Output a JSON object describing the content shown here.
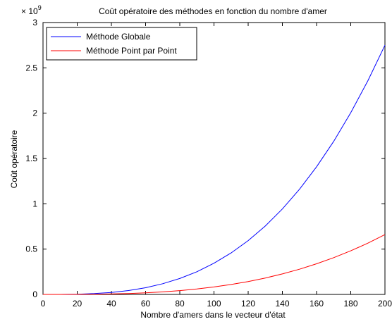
{
  "chart_data": {
    "type": "line",
    "title": "Coût opératoire des méthodes en fonction du nombre d'amer",
    "xlabel": "Nombre d'amers dans le vecteur d'état",
    "ylabel": "Coût opératoire",
    "y_multiplier_base": "× 10",
    "y_multiplier_exp": "9",
    "xlim": [
      0,
      200
    ],
    "ylim": [
      0,
      3
    ],
    "x_ticks": [
      0,
      20,
      40,
      60,
      80,
      100,
      120,
      140,
      160,
      180,
      200
    ],
    "y_ticks": [
      0,
      0.5,
      1,
      1.5,
      2,
      2.5,
      3
    ],
    "y_tick_labels": [
      "0",
      "0.5",
      "1",
      "1.5",
      "2",
      "2.5",
      "3"
    ],
    "grid": false,
    "legend_position": "top-left",
    "x": [
      0,
      10,
      20,
      30,
      40,
      50,
      60,
      70,
      80,
      90,
      100,
      110,
      120,
      130,
      140,
      150,
      160,
      170,
      180,
      190,
      200
    ],
    "series": [
      {
        "name": "Méthode Globale",
        "color": "#0000ff",
        "values": [
          0,
          0.0003,
          0.0027,
          0.0093,
          0.022,
          0.043,
          0.074,
          0.118,
          0.176,
          0.25,
          0.344,
          0.458,
          0.594,
          0.755,
          0.943,
          1.16,
          1.408,
          1.689,
          2.005,
          2.358,
          2.75
        ]
      },
      {
        "name": "Méthode Point par Point",
        "color": "#ff0000",
        "values": [
          0,
          0.0001,
          0.0007,
          0.0022,
          0.0053,
          0.0103,
          0.0178,
          0.0283,
          0.0422,
          0.0601,
          0.0825,
          0.1098,
          0.1426,
          0.1812,
          0.2264,
          0.2785,
          0.338,
          0.4054,
          0.4812,
          0.566,
          0.66
        ]
      }
    ]
  }
}
